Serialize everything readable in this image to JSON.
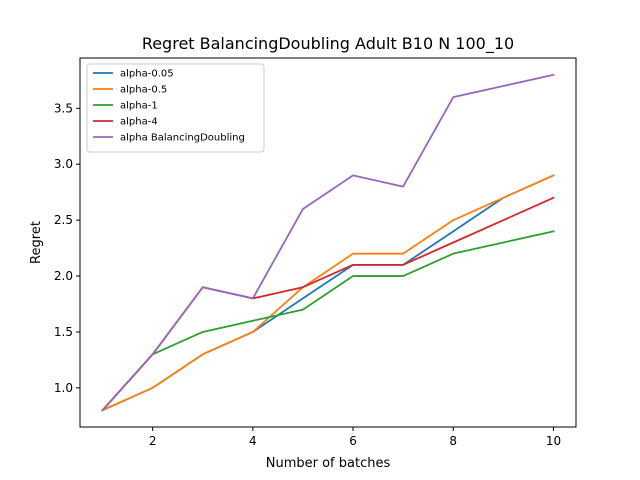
{
  "chart_data": {
    "type": "line",
    "title": "Regret BalancingDoubling Adult B10 N 100_10",
    "xlabel": "Number of batches",
    "ylabel": "Regret",
    "xlim": [
      0.55,
      10.45
    ],
    "ylim": [
      0.65,
      3.95
    ],
    "xticks": [
      2,
      4,
      6,
      8,
      10
    ],
    "yticks": [
      1.0,
      1.5,
      2.0,
      2.5,
      3.0,
      3.5
    ],
    "xtick_labels": [
      "2",
      "4",
      "6",
      "8",
      "10"
    ],
    "ytick_labels": [
      "1.0",
      "1.5",
      "2.0",
      "2.5",
      "3.0",
      "3.5"
    ],
    "grid": false,
    "legend_position": "upper left",
    "x": [
      1,
      2,
      3,
      4,
      5,
      6,
      7,
      8,
      9,
      10
    ],
    "series": [
      {
        "name": "alpha-0.05",
        "color": "#1f77b4",
        "values": [
          0.8,
          1.0,
          1.3,
          1.5,
          1.8,
          2.1,
          2.1,
          2.4,
          2.7,
          2.9
        ]
      },
      {
        "name": "alpha-0.5",
        "color": "#ff7f0e",
        "values": [
          0.8,
          1.0,
          1.3,
          1.5,
          1.9,
          2.2,
          2.2,
          2.5,
          2.7,
          2.9
        ]
      },
      {
        "name": "alpha-1",
        "color": "#2ca02c",
        "values": [
          0.8,
          1.3,
          1.5,
          1.6,
          1.7,
          2.0,
          2.0,
          2.2,
          2.3,
          2.4
        ]
      },
      {
        "name": "alpha-4",
        "color": "#d62728",
        "values": [
          0.8,
          1.3,
          1.9,
          1.8,
          1.9,
          2.1,
          2.1,
          2.3,
          2.5,
          2.7
        ]
      },
      {
        "name": "alpha BalancingDoubling",
        "color": "#9467bd",
        "values": [
          0.8,
          1.3,
          1.9,
          1.8,
          2.6,
          2.9,
          2.8,
          3.6,
          3.7,
          3.8
        ]
      }
    ]
  }
}
